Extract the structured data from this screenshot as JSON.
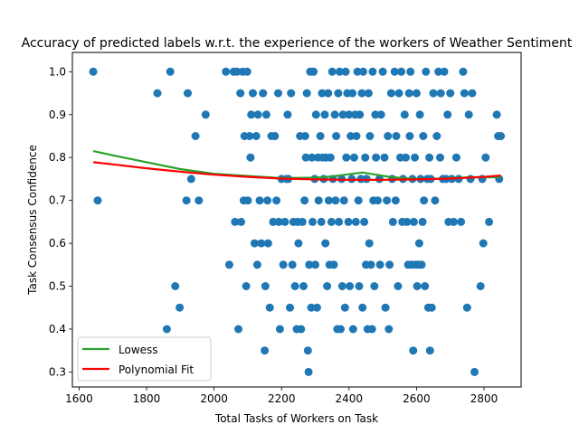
{
  "chart_data": {
    "type": "scatter",
    "title": "Accuracy of predicted labels w.r.t. the experience of the workers of Weather Sentiment",
    "xlabel": "Total Tasks of Workers on Task",
    "ylabel": "Task Consensus Confidence",
    "xlim": [
      1580,
      2910
    ],
    "ylim": [
      0.265,
      1.045
    ],
    "xticks": [
      1600,
      1800,
      2000,
      2200,
      2400,
      2600,
      2800
    ],
    "yticks": [
      0.3,
      0.4,
      0.5,
      0.6,
      0.7,
      0.8,
      0.9,
      1.0
    ],
    "grid": false,
    "legend_position": "lower-left",
    "colors": {
      "points": "#1f77b4",
      "lowess": "#2ca02c",
      "poly": "#ff0000"
    },
    "series": [
      {
        "type": "scatter",
        "points": [
          [
            1642,
            1.0
          ],
          [
            1655,
            0.7
          ],
          [
            1832,
            0.95
          ],
          [
            1860,
            0.4
          ],
          [
            1870,
            1.0
          ],
          [
            1885,
            0.5
          ],
          [
            1898,
            0.45
          ],
          [
            1918,
            0.7
          ],
          [
            1922,
            0.95
          ],
          [
            1932,
            0.75
          ],
          [
            1945,
            0.85
          ],
          [
            1955,
            0.7
          ],
          [
            1975,
            0.9
          ],
          [
            2035,
            1.0
          ],
          [
            2045,
            0.55
          ],
          [
            2058,
            1.0
          ],
          [
            2062,
            0.65
          ],
          [
            2068,
            1.0
          ],
          [
            2072,
            0.4
          ],
          [
            2078,
            0.95
          ],
          [
            2080,
            0.65
          ],
          [
            2085,
            1.0
          ],
          [
            2088,
            0.7
          ],
          [
            2090,
            0.85
          ],
          [
            2095,
            0.5
          ],
          [
            2098,
            1.0
          ],
          [
            2100,
            0.7
          ],
          [
            2105,
            0.85
          ],
          [
            2108,
            0.8
          ],
          [
            2110,
            0.9
          ],
          [
            2115,
            0.95
          ],
          [
            2120,
            0.6
          ],
          [
            2125,
            0.85
          ],
          [
            2128,
            0.55
          ],
          [
            2130,
            0.9
          ],
          [
            2135,
            0.7
          ],
          [
            2140,
            0.6
          ],
          [
            2145,
            0.95
          ],
          [
            2150,
            0.35
          ],
          [
            2152,
            0.5
          ],
          [
            2155,
            0.9
          ],
          [
            2158,
            0.7
          ],
          [
            2160,
            0.6
          ],
          [
            2165,
            0.45
          ],
          [
            2170,
            0.85
          ],
          [
            2175,
            0.65
          ],
          [
            2180,
            0.85
          ],
          [
            2185,
            0.7
          ],
          [
            2190,
            0.95
          ],
          [
            2192,
            0.65
          ],
          [
            2195,
            0.4
          ],
          [
            2200,
            0.75
          ],
          [
            2205,
            0.55
          ],
          [
            2210,
            0.65
          ],
          [
            2215,
            0.75
          ],
          [
            2218,
            0.9
          ],
          [
            2220,
            0.75
          ],
          [
            2225,
            0.45
          ],
          [
            2228,
            0.95
          ],
          [
            2232,
            0.55
          ],
          [
            2235,
            0.65
          ],
          [
            2240,
            0.5
          ],
          [
            2245,
            0.4
          ],
          [
            2248,
            0.65
          ],
          [
            2250,
            0.6
          ],
          [
            2255,
            0.85
          ],
          [
            2258,
            0.4
          ],
          [
            2262,
            0.65
          ],
          [
            2265,
            0.5
          ],
          [
            2268,
            0.7
          ],
          [
            2270,
            0.85
          ],
          [
            2272,
            0.8
          ],
          [
            2275,
            0.95
          ],
          [
            2278,
            0.35
          ],
          [
            2280,
            0.3
          ],
          [
            2282,
            0.55
          ],
          [
            2285,
            1.0
          ],
          [
            2288,
            0.45
          ],
          [
            2290,
            0.8
          ],
          [
            2292,
            0.65
          ],
          [
            2295,
            1.0
          ],
          [
            2298,
            0.75
          ],
          [
            2300,
            0.55
          ],
          [
            2302,
            0.9
          ],
          [
            2305,
            0.45
          ],
          [
            2308,
            0.8
          ],
          [
            2310,
            0.7
          ],
          [
            2315,
            0.85
          ],
          [
            2318,
            0.65
          ],
          [
            2320,
            0.95
          ],
          [
            2322,
            0.8
          ],
          [
            2325,
            0.75
          ],
          [
            2328,
            0.9
          ],
          [
            2330,
            0.6
          ],
          [
            2332,
            0.8
          ],
          [
            2335,
            0.5
          ],
          [
            2338,
            0.95
          ],
          [
            2340,
            0.7
          ],
          [
            2342,
            0.55
          ],
          [
            2345,
            0.8
          ],
          [
            2348,
            0.65
          ],
          [
            2350,
            1.0
          ],
          [
            2352,
            0.75
          ],
          [
            2355,
            0.55
          ],
          [
            2358,
            0.9
          ],
          [
            2360,
            0.7
          ],
          [
            2362,
            0.85
          ],
          [
            2365,
            0.4
          ],
          [
            2368,
            0.95
          ],
          [
            2370,
            0.65
          ],
          [
            2372,
            1.0
          ],
          [
            2375,
            0.4
          ],
          [
            2378,
            0.75
          ],
          [
            2380,
            0.5
          ],
          [
            2382,
            0.9
          ],
          [
            2385,
            0.7
          ],
          [
            2388,
            0.45
          ],
          [
            2390,
            1.0
          ],
          [
            2392,
            0.8
          ],
          [
            2395,
            0.95
          ],
          [
            2398,
            0.65
          ],
          [
            2400,
            0.9
          ],
          [
            2402,
            0.5
          ],
          [
            2405,
            0.85
          ],
          [
            2408,
            0.75
          ],
          [
            2410,
            0.95
          ],
          [
            2412,
            0.4
          ],
          [
            2415,
            0.8
          ],
          [
            2418,
            0.9
          ],
          [
            2420,
            0.65
          ],
          [
            2422,
            0.85
          ],
          [
            2425,
            1.0
          ],
          [
            2428,
            0.7
          ],
          [
            2430,
            0.5
          ],
          [
            2432,
            0.9
          ],
          [
            2435,
            0.75
          ],
          [
            2438,
            0.95
          ],
          [
            2440,
            0.45
          ],
          [
            2442,
            1.0
          ],
          [
            2445,
            0.65
          ],
          [
            2448,
            0.8
          ],
          [
            2450,
            0.55
          ],
          [
            2452,
            0.75
          ],
          [
            2455,
            0.4
          ],
          [
            2458,
            0.95
          ],
          [
            2460,
            0.6
          ],
          [
            2462,
            0.85
          ],
          [
            2465,
            0.55
          ],
          [
            2468,
            0.4
          ],
          [
            2470,
            1.0
          ],
          [
            2472,
            0.7
          ],
          [
            2475,
            0.5
          ],
          [
            2478,
            0.9
          ],
          [
            2480,
            0.8
          ],
          [
            2485,
            0.7
          ],
          [
            2490,
            0.75
          ],
          [
            2492,
            0.55
          ],
          [
            2495,
            0.9
          ],
          [
            2500,
            1.0
          ],
          [
            2505,
            0.8
          ],
          [
            2508,
            0.45
          ],
          [
            2512,
            0.7
          ],
          [
            2515,
            0.85
          ],
          [
            2518,
            0.4
          ],
          [
            2520,
            0.55
          ],
          [
            2525,
            0.95
          ],
          [
            2528,
            0.75
          ],
          [
            2530,
            0.65
          ],
          [
            2535,
            1.0
          ],
          [
            2538,
            0.7
          ],
          [
            2540,
            0.85
          ],
          [
            2545,
            0.5
          ],
          [
            2548,
            0.95
          ],
          [
            2552,
            0.8
          ],
          [
            2555,
            1.0
          ],
          [
            2558,
            0.65
          ],
          [
            2560,
            0.75
          ],
          [
            2565,
            0.9
          ],
          [
            2568,
            0.8
          ],
          [
            2572,
            0.65
          ],
          [
            2575,
            0.55
          ],
          [
            2578,
            0.95
          ],
          [
            2580,
            0.85
          ],
          [
            2582,
            1.0
          ],
          [
            2585,
            0.55
          ],
          [
            2588,
            0.75
          ],
          [
            2590,
            0.35
          ],
          [
            2592,
            0.65
          ],
          [
            2595,
            0.8
          ],
          [
            2598,
            0.55
          ],
          [
            2600,
            0.95
          ],
          [
            2602,
            0.5
          ],
          [
            2605,
            0.55
          ],
          [
            2608,
            0.6
          ],
          [
            2610,
            0.9
          ],
          [
            2612,
            0.75
          ],
          [
            2615,
            0.55
          ],
          [
            2618,
            0.65
          ],
          [
            2620,
            0.85
          ],
          [
            2622,
            0.7
          ],
          [
            2625,
            0.5
          ],
          [
            2628,
            1.0
          ],
          [
            2632,
            0.75
          ],
          [
            2635,
            0.45
          ],
          [
            2638,
            0.8
          ],
          [
            2640,
            0.35
          ],
          [
            2642,
            0.75
          ],
          [
            2645,
            0.45
          ],
          [
            2650,
            0.95
          ],
          [
            2655,
            0.7
          ],
          [
            2660,
            0.85
          ],
          [
            2665,
            1.0
          ],
          [
            2670,
            0.8
          ],
          [
            2672,
            0.95
          ],
          [
            2678,
            0.75
          ],
          [
            2682,
            1.0
          ],
          [
            2688,
            0.75
          ],
          [
            2692,
            0.9
          ],
          [
            2695,
            0.65
          ],
          [
            2700,
            0.95
          ],
          [
            2705,
            0.75
          ],
          [
            2710,
            0.65
          ],
          [
            2718,
            0.8
          ],
          [
            2725,
            0.75
          ],
          [
            2732,
            0.65
          ],
          [
            2738,
            1.0
          ],
          [
            2742,
            0.95
          ],
          [
            2750,
            0.45
          ],
          [
            2755,
            0.9
          ],
          [
            2760,
            0.75
          ],
          [
            2765,
            0.95
          ],
          [
            2772,
            0.3
          ],
          [
            2790,
            0.5
          ],
          [
            2795,
            0.75
          ],
          [
            2798,
            0.6
          ],
          [
            2805,
            0.8
          ],
          [
            2815,
            0.65
          ],
          [
            2838,
            0.9
          ],
          [
            2842,
            0.85
          ],
          [
            2845,
            0.75
          ],
          [
            2850,
            0.85
          ]
        ]
      },
      {
        "name": "Lowess",
        "type": "line",
        "points": [
          [
            1642,
            0.815
          ],
          [
            1700,
            0.805
          ],
          [
            1800,
            0.789
          ],
          [
            1900,
            0.773
          ],
          [
            2000,
            0.762
          ],
          [
            2100,
            0.757
          ],
          [
            2200,
            0.752
          ],
          [
            2300,
            0.753
          ],
          [
            2350,
            0.756
          ],
          [
            2400,
            0.761
          ],
          [
            2440,
            0.765
          ],
          [
            2480,
            0.76
          ],
          [
            2520,
            0.755
          ],
          [
            2560,
            0.752
          ],
          [
            2600,
            0.75
          ],
          [
            2650,
            0.75
          ],
          [
            2700,
            0.752
          ],
          [
            2760,
            0.754
          ],
          [
            2820,
            0.754
          ],
          [
            2850,
            0.754
          ]
        ]
      },
      {
        "name": "Polynomial Fit",
        "type": "line",
        "points": [
          [
            1642,
            0.789
          ],
          [
            1700,
            0.784
          ],
          [
            1800,
            0.775
          ],
          [
            1900,
            0.767
          ],
          [
            2000,
            0.76
          ],
          [
            2100,
            0.755
          ],
          [
            2200,
            0.751
          ],
          [
            2300,
            0.749
          ],
          [
            2400,
            0.748
          ],
          [
            2500,
            0.748
          ],
          [
            2600,
            0.749
          ],
          [
            2700,
            0.751
          ],
          [
            2800,
            0.755
          ],
          [
            2850,
            0.758
          ]
        ]
      }
    ]
  }
}
